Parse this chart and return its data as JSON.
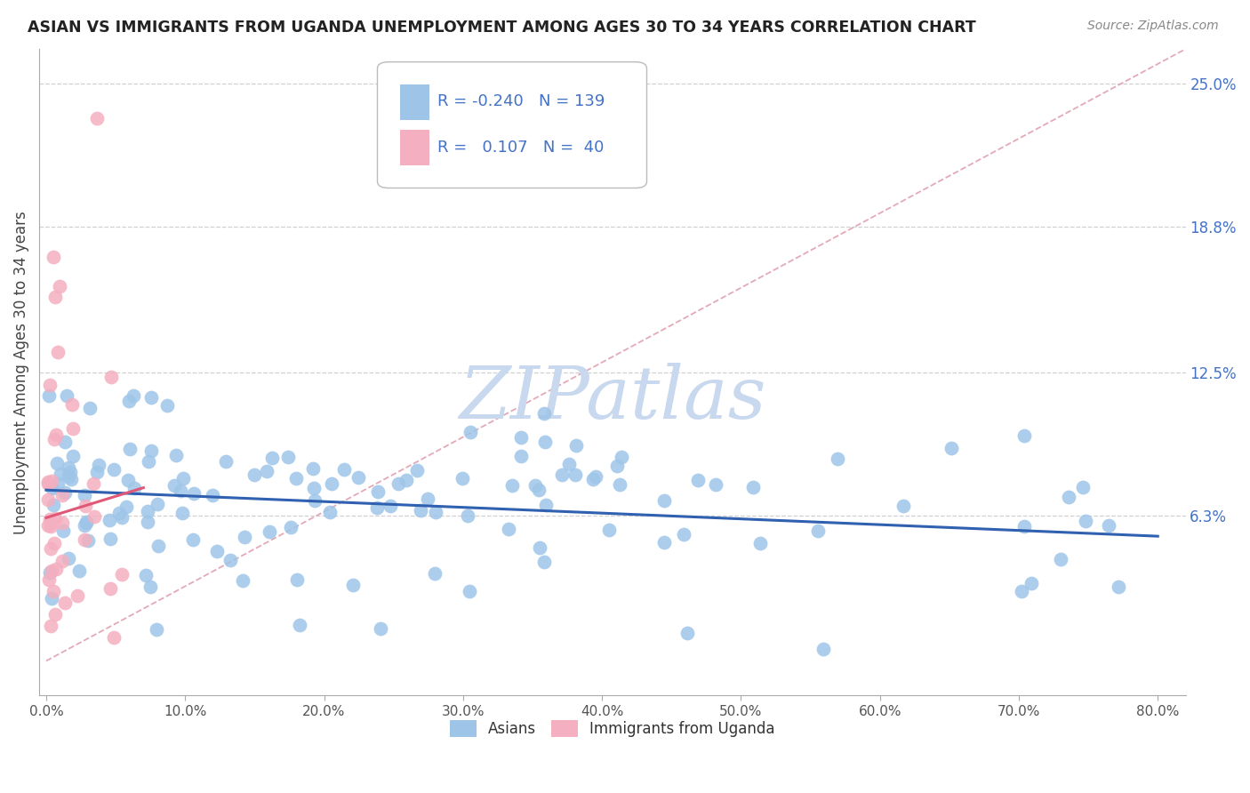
{
  "title": "ASIAN VS IMMIGRANTS FROM UGANDA UNEMPLOYMENT AMONG AGES 30 TO 34 YEARS CORRELATION CHART",
  "source": "Source: ZipAtlas.com",
  "ylabel": "Unemployment Among Ages 30 to 34 years",
  "xticklabels": [
    "0.0%",
    "10.0%",
    "20.0%",
    "30.0%",
    "40.0%",
    "50.0%",
    "60.0%",
    "70.0%",
    "80.0%"
  ],
  "xticks": [
    0.0,
    0.1,
    0.2,
    0.3,
    0.4,
    0.5,
    0.6,
    0.7,
    0.8
  ],
  "yticks_right": [
    0.063,
    0.125,
    0.188,
    0.25
  ],
  "yticklabels_right": [
    "6.3%",
    "12.5%",
    "18.8%",
    "25.0%"
  ],
  "xlim": [
    -0.005,
    0.82
  ],
  "ylim": [
    -0.015,
    0.265
  ],
  "legend_blue_r": "-0.240",
  "legend_blue_n": "139",
  "legend_pink_r": "0.107",
  "legend_pink_n": "40",
  "blue_label": "Asians",
  "pink_label": "Immigrants from Uganda",
  "blue_color": "#9ec5e8",
  "pink_color": "#f4afc0",
  "trend_blue_color": "#3060b0",
  "trend_pink_color": "#e05878",
  "diag_color": "#e0a0b0",
  "grid_color": "#d0d0d0",
  "watermark_color": "#c8d8ee",
  "background_color": "#ffffff"
}
